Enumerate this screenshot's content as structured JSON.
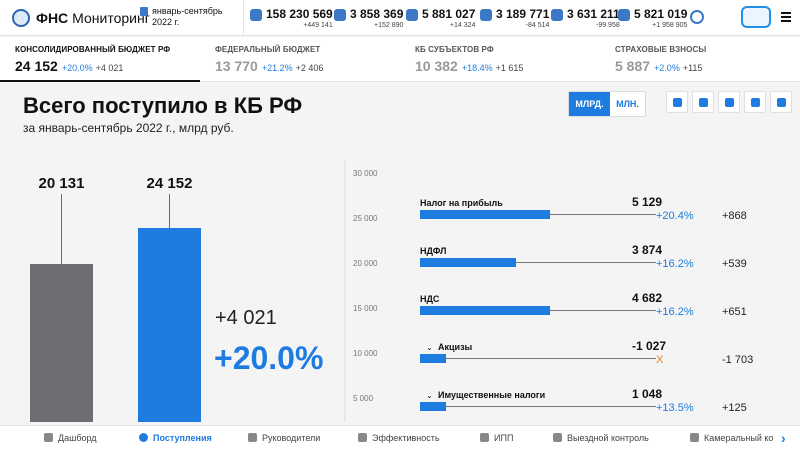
{
  "header": {
    "brand_bold": "ФНС",
    "brand_rest": "Мониторинг",
    "period_line1": "январь-сентябрь",
    "period_line2": "2022 г.",
    "stats": [
      {
        "value": "158 230 569",
        "delta": "+449 141",
        "icon": "users-icon"
      },
      {
        "value": "3 858 369",
        "delta": "+152 890",
        "icon": "people-icon"
      },
      {
        "value": "5 881 027",
        "delta": "+14 324",
        "icon": "company-icon"
      },
      {
        "value": "3 189 771",
        "delta": "-84 514",
        "icon": "building-icon"
      },
      {
        "value": "3 631 211",
        "delta": "-99 958",
        "icon": "organizations-icon"
      },
      {
        "value": "5 821 019",
        "delta": "+1 958 905",
        "icon": "person-badge-icon"
      }
    ]
  },
  "tabs": [
    {
      "label": "КОНСОЛИДИРОВАННЫЙ БЮДЖЕТ РФ",
      "value": "24 152",
      "pct": "+20.0%",
      "abs": "+4 021"
    },
    {
      "label": "ФЕДЕРАЛЬНЫЙ БЮДЖЕТ",
      "value": "13 770",
      "pct": "+21.2%",
      "abs": "+2 406"
    },
    {
      "label": "КБ СУБЪЕКТОВ РФ",
      "value": "10 382",
      "pct": "+18.4%",
      "abs": "+1 615"
    },
    {
      "label": "СТРАХОВЫЕ ВЗНОСЫ",
      "value": "5 887",
      "pct": "+2.0%",
      "abs": "+115"
    }
  ],
  "main": {
    "title": "Всего поступило в КБ РФ",
    "subtitle": "за январь-сентябрь 2022 г., млрд руб.",
    "unit_bln": "МЛРД.",
    "unit_mln": "МЛН.",
    "view_buttons": [
      "history-icon",
      "balance-scale-icon",
      "bar-chart-icon",
      "line-chart-icon",
      "list-icon"
    ]
  },
  "chart_data": {
    "type": "bar",
    "categories": [
      "",
      ""
    ],
    "values": [
      20131,
      24152
    ],
    "value_labels": [
      "20 131",
      "24 152"
    ],
    "colors": [
      "#6d6d73",
      "#1e7be0"
    ],
    "ylim": [
      0,
      30000
    ],
    "yticks": [
      "30 000",
      "25 000",
      "20 000",
      "15 000",
      "10 000",
      "5 000"
    ],
    "delta_abs": "+4 021",
    "delta_pct": "+20.0%"
  },
  "breakdown": [
    {
      "label": "Налог на прибыль",
      "value": "5 129",
      "share": 0.5,
      "pct": "+20.4%",
      "abs": "+868",
      "expandable": false,
      "negative": false
    },
    {
      "label": "НДФЛ",
      "value": "3 874",
      "share": 0.37,
      "pct": "+16.2%",
      "abs": "+539",
      "expandable": false,
      "negative": false
    },
    {
      "label": "НДС",
      "value": "4 682",
      "share": 0.5,
      "pct": "+16.2%",
      "abs": "+651",
      "expandable": false,
      "negative": false
    },
    {
      "label": "Акцизы",
      "value": "-1 027",
      "share": 0.1,
      "pct": "X",
      "abs": "-1 703",
      "expandable": true,
      "negative": true
    },
    {
      "label": "Имущественные налоги",
      "value": "1 048",
      "share": 0.1,
      "pct": "+13.5%",
      "abs": "+125",
      "expandable": true,
      "negative": false
    }
  ],
  "bottom_nav": [
    {
      "label": "Дашборд",
      "icon": "grid-icon",
      "active": false
    },
    {
      "label": "Поступления",
      "icon": "coins-icon",
      "active": true
    },
    {
      "label": "Руководители",
      "icon": "managers-icon",
      "active": false
    },
    {
      "label": "Эффективность",
      "icon": "efficiency-icon",
      "active": false
    },
    {
      "label": "ИПП",
      "icon": "pin-icon",
      "active": false
    },
    {
      "label": "Выездной контроль",
      "icon": "inspector-icon",
      "active": false
    },
    {
      "label": "Камеральный ко",
      "icon": "document-check-icon",
      "active": false
    }
  ]
}
